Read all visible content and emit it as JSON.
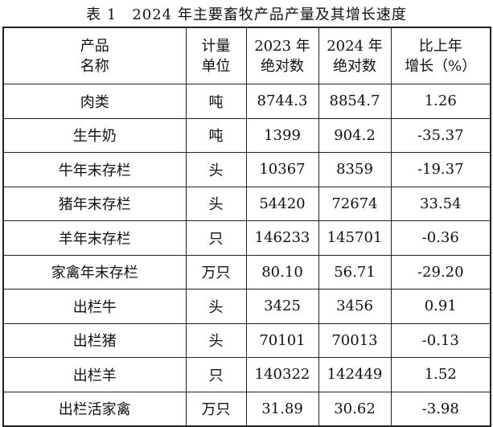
{
  "title": "表 1　2024 年主要畜牧产品产量及其增长速度",
  "table": {
    "header": [
      [
        "产品",
        "名称"
      ],
      [
        "计量",
        "单位"
      ],
      [
        "2023 年",
        "绝对数"
      ],
      [
        "2024 年",
        "绝对数"
      ],
      [
        "比上年",
        "增长（%）"
      ]
    ],
    "rows": [
      [
        "肉类",
        "吨",
        "8744.3",
        "8854.7",
        "1.26"
      ],
      [
        "生牛奶",
        "吨",
        "1399",
        "904.2",
        "-35.37"
      ],
      [
        "牛年末存栏",
        "头",
        "10367",
        "8359",
        "-19.37"
      ],
      [
        "猪年末存栏",
        "头",
        "54420",
        "72674",
        "33.54"
      ],
      [
        "羊年末存栏",
        "只",
        "146233",
        "145701",
        "-0.36"
      ],
      [
        "家禽年末存栏",
        "万只",
        "80.10",
        "56.71",
        "-29.20"
      ],
      [
        "出栏牛",
        "头",
        "3425",
        "3456",
        "0.91"
      ],
      [
        "出栏猪",
        "头",
        "70101",
        "70013",
        "-0.13"
      ],
      [
        "出栏羊",
        "只",
        "140322",
        "142449",
        "1.52"
      ],
      [
        "出栏活家禽",
        "万只",
        "31.89",
        "30.62",
        "-3.98"
      ]
    ]
  }
}
